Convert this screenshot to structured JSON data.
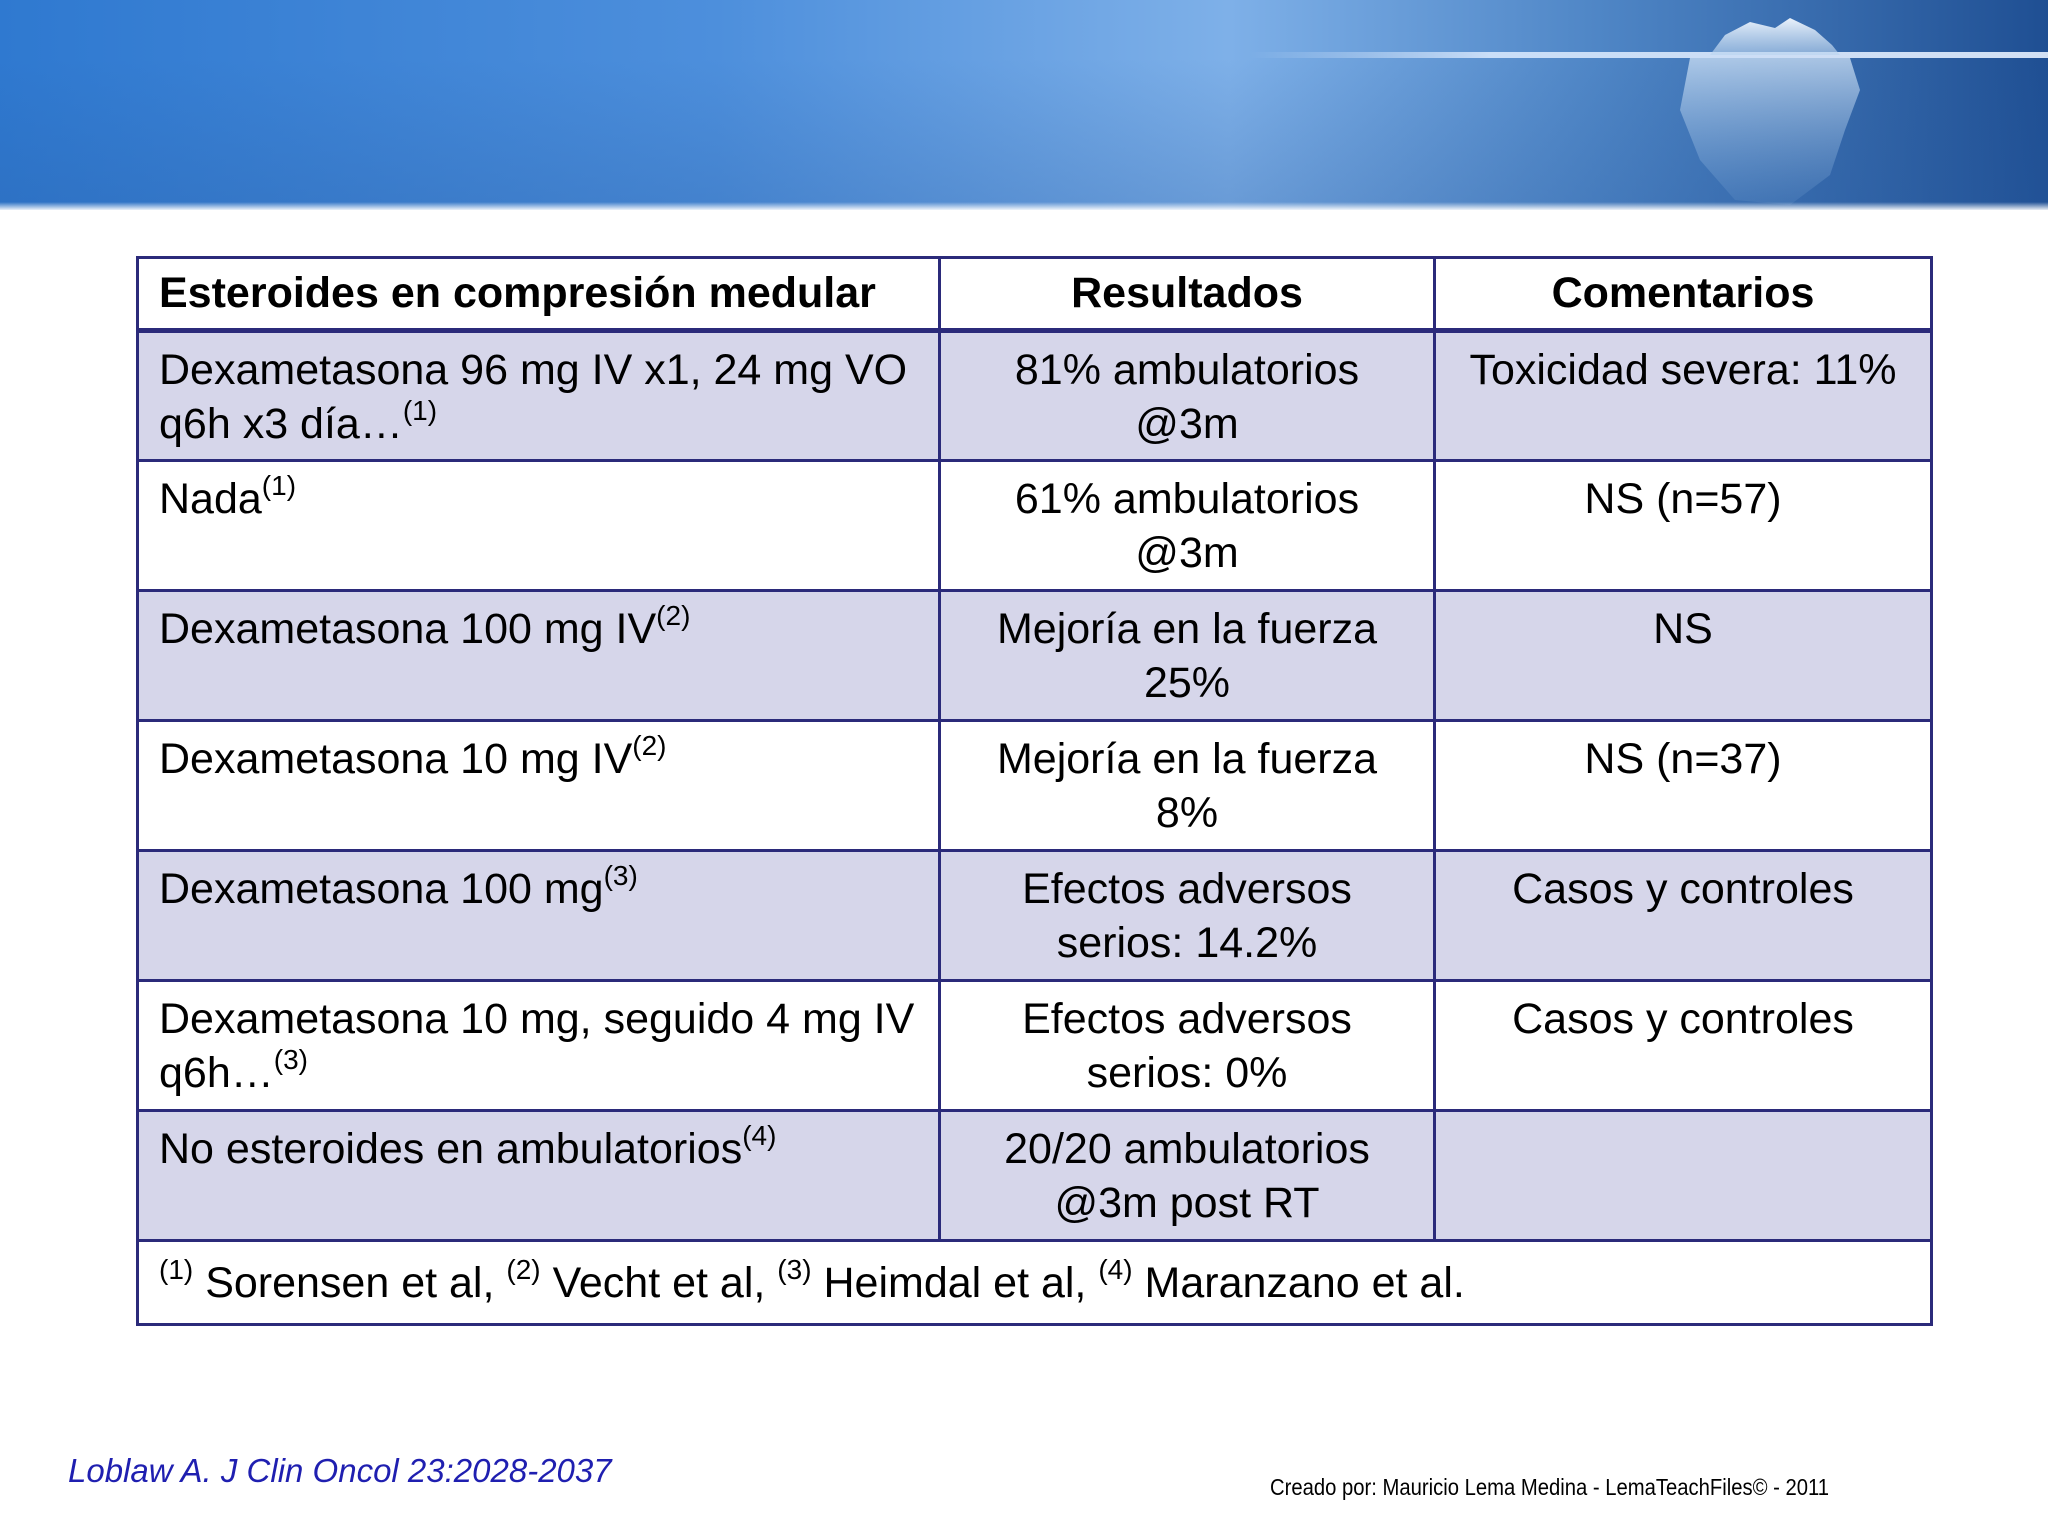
{
  "table": {
    "headers": [
      "Esteroides en compresión medular",
      "Resultados",
      "Comentarios"
    ],
    "rows": [
      {
        "treatment": "Dexametasona 96 mg IV x1, 24 mg VO q6h x3 día…",
        "ref": "(1)",
        "result": "81% ambulatorios @3m",
        "comment": "Toxicidad severa: 11%"
      },
      {
        "treatment": "Nada",
        "ref": "(1)",
        "result": "61% ambulatorios @3m",
        "comment": "NS (n=57)"
      },
      {
        "treatment": "Dexametasona 100 mg IV",
        "ref": "(2)",
        "result": "Mejoría en la fuerza 25%",
        "comment": "NS"
      },
      {
        "treatment": "Dexametasona 10 mg IV",
        "ref": "(2)",
        "result": "Mejoría en la fuerza 8%",
        "comment": "NS (n=37)"
      },
      {
        "treatment": "Dexametasona 100 mg",
        "ref": "(3)",
        "result": "Efectos adversos serios: 14.2%",
        "comment": "Casos y controles"
      },
      {
        "treatment": "Dexametasona 10 mg, seguido 4 mg IV q6h…",
        "ref": "(3)",
        "result": "Efectos adversos serios: 0%",
        "comment": "Casos y controles"
      },
      {
        "treatment": "No esteroides en ambulatorios",
        "ref": "(4)",
        "result": "20/20 ambulatorios @3m post RT",
        "comment": ""
      }
    ],
    "references": [
      {
        "num": "(1)",
        "text": "Sorensen et al,"
      },
      {
        "num": "(2)",
        "text": "Vecht et al,"
      },
      {
        "num": "(3)",
        "text": "Heimdal et al,"
      },
      {
        "num": "(4)",
        "text": "Maranzano et al."
      }
    ]
  },
  "footer": {
    "citation": "Loblaw A. J Clin Oncol 23:2028-2037",
    "credit": "Creado por: Mauricio Lema Medina - LemaTeachFiles© - 2011"
  }
}
